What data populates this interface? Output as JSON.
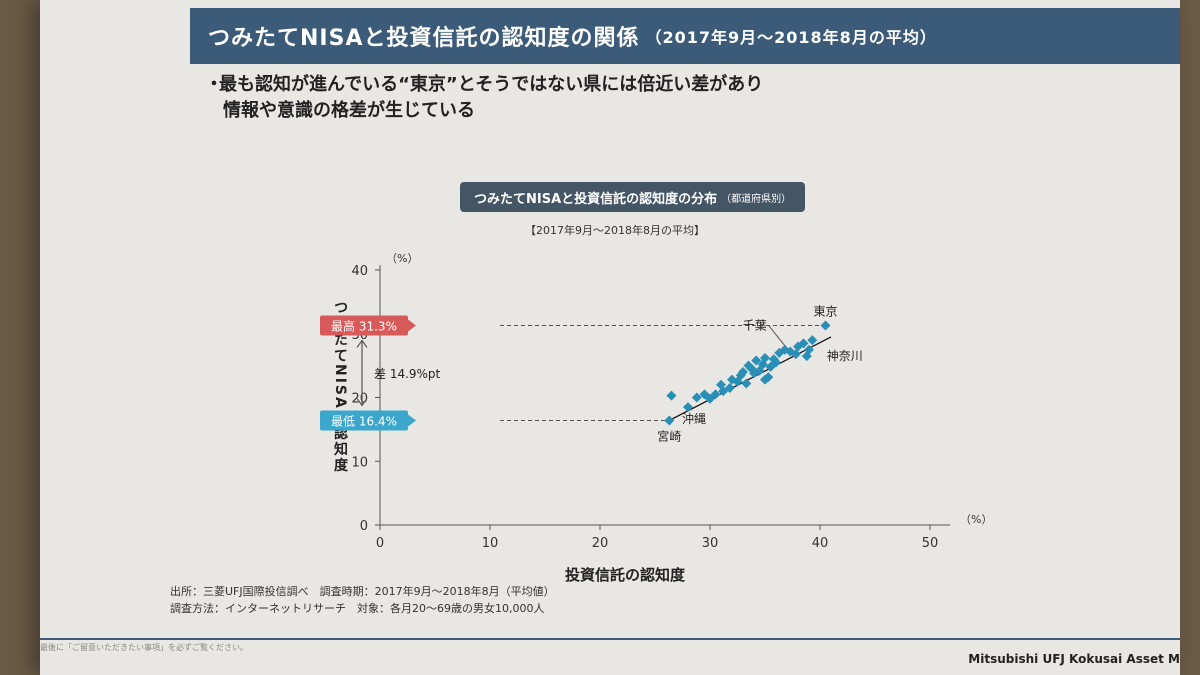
{
  "header": {
    "title": "つみたてNISAと投資信託の認知度の関係",
    "subtitle": "（2017年9月～2018年8月の平均）"
  },
  "bullet": {
    "line1": "最も認知が進んでいる“東京”とそうではない県には倍近い差があり",
    "line2": "情報や意識の格差が生じている"
  },
  "chart_title": {
    "main": "つみたてNISAと投資信託の認知度の分布",
    "small": "（都道府県別）"
  },
  "chart_subtitle": "【2017年9月～2018年8月の平均】",
  "footer": {
    "line1": "出所：三菱UFJ国際投信調べ　調査時期：2017年9月～2018年8月（平均値）",
    "line2": "調査方法：インターネットリサーチ　対象：各月20～69歳の男女10,000人"
  },
  "disclaimer": "最後に「ご留意いただきたい事項」を必ずご覧ください。",
  "company": "Mitsubishi UFJ Kokusai Asset M",
  "colors": {
    "header": "#3b5b78",
    "marker": "#2a8fb7",
    "max_badge": "#d95a5a",
    "min_badge": "#3ba7cc",
    "trend": "#111111"
  },
  "chart_data": {
    "type": "scatter",
    "xlabel": "投資信託の認知度",
    "ylabel": "つみたてNISAの認知度",
    "x_unit": "（%）",
    "y_unit": "（%）",
    "xlim": [
      0,
      50
    ],
    "ylim": [
      0,
      40
    ],
    "x_ticks": [
      "0",
      "10",
      "20",
      "30",
      "40",
      "50"
    ],
    "y_ticks": [
      "0",
      "10",
      "20",
      "30",
      "40"
    ],
    "grid": false,
    "max_badge": {
      "label": "最高 31.3%",
      "value": 31.3
    },
    "min_badge": {
      "label": "最低 16.4%",
      "value": 16.4
    },
    "gap_label": "差 14.9%pt",
    "trendline": [
      [
        26.3,
        16.4
      ],
      [
        41.0,
        29.5
      ]
    ],
    "points": [
      [
        26.3,
        16.4
      ],
      [
        26.5,
        20.3
      ],
      [
        28.0,
        18.5
      ],
      [
        28.8,
        20.0
      ],
      [
        29.5,
        20.5
      ],
      [
        30.0,
        19.8
      ],
      [
        30.5,
        20.5
      ],
      [
        31.0,
        22.0
      ],
      [
        31.2,
        21.0
      ],
      [
        31.8,
        21.5
      ],
      [
        32.0,
        22.8
      ],
      [
        32.5,
        22.5
      ],
      [
        32.8,
        23.5
      ],
      [
        33.0,
        24.0
      ],
      [
        33.3,
        22.2
      ],
      [
        33.5,
        25.0
      ],
      [
        33.8,
        24.5
      ],
      [
        34.0,
        23.8
      ],
      [
        34.2,
        25.8
      ],
      [
        34.5,
        24.2
      ],
      [
        34.8,
        25.2
      ],
      [
        35.0,
        22.8
      ],
      [
        35.0,
        26.2
      ],
      [
        35.3,
        23.2
      ],
      [
        35.5,
        24.8
      ],
      [
        35.8,
        26.0
      ],
      [
        36.0,
        25.5
      ],
      [
        36.3,
        27.0
      ],
      [
        36.8,
        27.5
      ],
      [
        37.3,
        27.2
      ],
      [
        37.8,
        26.8
      ],
      [
        38.0,
        28.0
      ],
      [
        38.5,
        28.5
      ],
      [
        38.8,
        26.5
      ],
      [
        39.0,
        27.5
      ],
      [
        39.3,
        29.0
      ],
      [
        40.5,
        31.3
      ]
    ],
    "annotations": [
      {
        "text": "東京",
        "x": 40.5,
        "y": 31.3
      },
      {
        "text": "千葉",
        "x": 36.8,
        "y": 27.5
      },
      {
        "text": "神奈川",
        "x": 38.8,
        "y": 26.5
      },
      {
        "text": "沖縄",
        "x": 28.0,
        "y": 18.5
      },
      {
        "text": "宮崎",
        "x": 26.3,
        "y": 16.4
      }
    ]
  }
}
